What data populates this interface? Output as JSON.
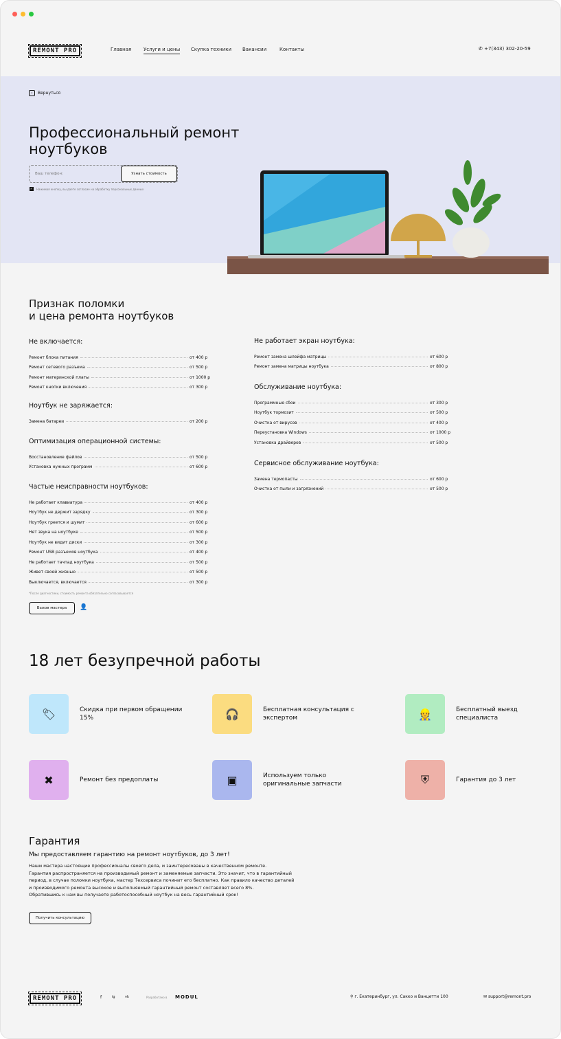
{
  "header": {
    "logo": "REMONT PRO",
    "nav": [
      "Главная",
      "Услуги и цены",
      "Скупка техники",
      "Вакансии",
      "Контакты"
    ],
    "active": "Услуги и цены",
    "phone": "+7(343) 302-20-59"
  },
  "hero": {
    "back": "Вернуться",
    "title_line1": "Профессиональный ремонт",
    "title_line2": "ноутбуков",
    "phone_placeholder": "Ваш телефон:",
    "submit": "Узнать стоимость",
    "consent": "Нажимая кнопку, вы даете согласие на обработку персональных данных",
    "consent_checked": true
  },
  "prices": {
    "title_line1": "Признак поломки",
    "title_line2": "и цена ремонта ноутбуков",
    "left": [
      {
        "title": "Не включается:",
        "items": [
          [
            "Ремонт блока питания",
            "от 400 р"
          ],
          [
            "Ремонт сетевого разъема",
            "от 500 р"
          ],
          [
            "Ремонт материнской платы",
            "от 1000 р"
          ],
          [
            "Ремонт кнопки включения",
            "от 300 р"
          ]
        ]
      },
      {
        "title": "Ноутбук не заряжается:",
        "items": [
          [
            "Замена батареи",
            "от 200 р"
          ]
        ]
      },
      {
        "title": "Оптимизация операционной системы:",
        "items": [
          [
            "Восстановление файлов",
            "от 500 р"
          ],
          [
            "Установка нужных программ",
            "от 600 р"
          ]
        ]
      },
      {
        "title": "Частые неисправности ноутбуков:",
        "items": [
          [
            "Не работает клавиатура",
            "от 400 р"
          ],
          [
            "Ноутбук не держит зарядку",
            "от 300 р"
          ],
          [
            "Ноутбук греется и шумит",
            "от 600 р"
          ],
          [
            "Нет звука на ноутбуке",
            "от 500 р"
          ],
          [
            "Ноутбук не видит диски",
            "от 300 р"
          ],
          [
            "Ремонт USB разъемов ноутбука",
            "от 400 р"
          ],
          [
            "Не работает тачпад ноутбука",
            "от 500 р"
          ],
          [
            "Живет своей жизнью",
            "от 500 р"
          ],
          [
            "Выключается, включается",
            "от 300 р"
          ]
        ]
      }
    ],
    "right": [
      {
        "title": "Не работает экран ноутбука:",
        "items": [
          [
            "Ремонт замена шлейфа матрицы",
            "от 600 р"
          ],
          [
            "Ремонт замена матрицы ноутбука",
            "от 800 р"
          ]
        ]
      },
      {
        "title": "Обслуживание ноутбука:",
        "items": [
          [
            "Программные сбои",
            "от 300 р"
          ],
          [
            "Ноутбук тормозит",
            "от 500 р"
          ],
          [
            "Очистка от вирусов",
            "от 400 р"
          ],
          [
            "Переустановка Windows",
            "от 1000 р"
          ],
          [
            "Установка драйверов",
            "от 500 р"
          ]
        ]
      },
      {
        "title": "Сервисное обслуживание ноутбука:",
        "items": [
          [
            "Замена термопасты",
            "от 600 р"
          ],
          [
            "Очистка от пыли и загрязнений",
            "от 500 р"
          ]
        ]
      }
    ],
    "note": "*После диагностики, стоимость ремонта обязательно согласовывается",
    "call_button": "Вызов мастера"
  },
  "features": {
    "title": "18 лет безупречной работы",
    "items": [
      {
        "text": "Скидка при первом обращении 15%",
        "icon": "discount-tag-icon",
        "color": "#bfe7fb"
      },
      {
        "text": "Бесплатная консультация с экспертом",
        "icon": "headset-icon",
        "color": "#fbdc80"
      },
      {
        "text": "Бесплатный выезд специалиста",
        "icon": "specialist-icon",
        "color": "#b1ecc1"
      },
      {
        "text": "Ремонт без предоплаты",
        "icon": "tools-icon",
        "color": "#e0b0ee"
      },
      {
        "text": "Используем только оригинальные запчасти",
        "icon": "chip-icon",
        "color": "#aab7ee"
      },
      {
        "text": "Гарантия до 3 лет",
        "icon": "shield-icon",
        "color": "#eeb1a8"
      }
    ]
  },
  "guarantee": {
    "title": "Гарантия",
    "subtitle": "Мы предоставляем гарантию на ремонт ноутбуков, до 3 лет!",
    "paragraphs": [
      "Наши мастера настоящие профессионалы своего дела, и заинтересованы в качественном ремонте.",
      "Гарантия распространяется на производимый ремонт и заменяемые запчасти. Это значит, что в гарантийный",
      "период, в случае поломки ноутбука, мастер Техсервиса починит его бесплатно. Как правило качество деталей",
      "и производимого ремонта высокое и выполняемый гарантийный ремонт составляет всего 8%.",
      "Обратившись к нам вы получаете работоспособный ноутбук на весь гарантийный срок!"
    ],
    "button": "Получить консультацию"
  },
  "footer": {
    "logo": "REMONT PRO",
    "socials": [
      "f",
      "ig",
      "vk"
    ],
    "dev_label": "Разработано в",
    "dev_brand": "MODUL",
    "address": "г. Екатеринбург, ул. Сакко и Ванцетти 100",
    "email": "support@remont.pro"
  }
}
